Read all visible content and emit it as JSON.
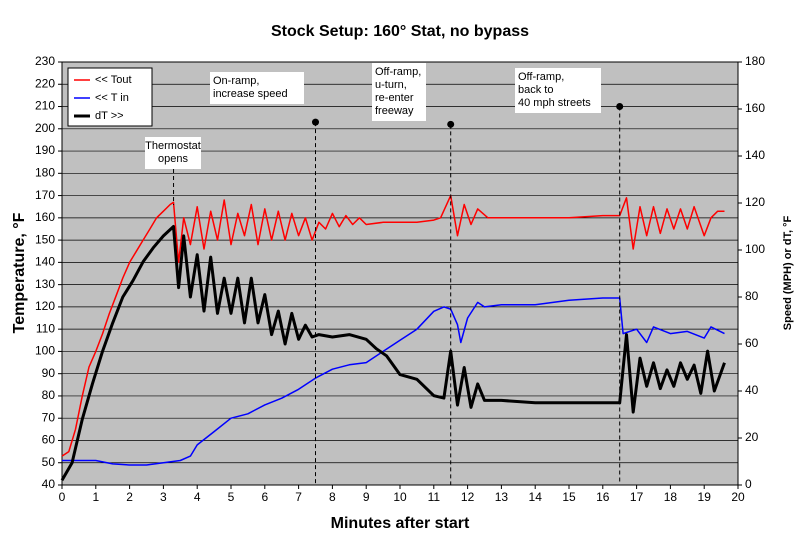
{
  "chart_data": {
    "type": "line",
    "title": "Stock Setup:  160° Stat, no bypass",
    "xlabel": "Minutes after start",
    "ylabel": "Temperature, °F",
    "y2label": "Speed (MPH) or dT, °F",
    "xlim": [
      0,
      20
    ],
    "xticks": [
      0,
      1,
      2,
      3,
      4,
      5,
      6,
      7,
      8,
      9,
      10,
      11,
      12,
      13,
      14,
      15,
      16,
      17,
      18,
      19,
      20
    ],
    "ylim": [
      40,
      230
    ],
    "yticks": [
      40,
      50,
      60,
      70,
      80,
      90,
      100,
      110,
      120,
      130,
      140,
      150,
      160,
      170,
      180,
      190,
      200,
      210,
      220,
      230
    ],
    "y2lim": [
      0,
      180
    ],
    "y2ticks": [
      0,
      20,
      40,
      60,
      80,
      100,
      120,
      140,
      160,
      180
    ],
    "grid": true,
    "legend": "upper left",
    "background": "#c0c0c0",
    "series": [
      {
        "name": "<< Tout",
        "color": "#ff0000",
        "line_width": 1.5,
        "x": [
          0,
          0.2,
          0.4,
          0.6,
          0.8,
          1.0,
          1.2,
          1.4,
          1.6,
          1.8,
          2.0,
          2.2,
          2.4,
          2.6,
          2.8,
          3.0,
          3.2,
          3.3,
          3.45,
          3.6,
          3.8,
          4.0,
          4.2,
          4.4,
          4.6,
          4.8,
          5.0,
          5.2,
          5.4,
          5.6,
          5.8,
          6.0,
          6.2,
          6.4,
          6.6,
          6.8,
          7.0,
          7.2,
          7.4,
          7.6,
          7.8,
          8.0,
          8.2,
          8.4,
          8.6,
          8.8,
          9.0,
          9.5,
          10,
          10.5,
          11,
          11.2,
          11.5,
          11.7,
          11.9,
          12.1,
          12.3,
          12.6,
          13,
          14,
          15,
          16,
          16.5,
          16.7,
          16.9,
          17.1,
          17.3,
          17.5,
          17.7,
          17.9,
          18.1,
          18.3,
          18.5,
          18.7,
          19.0,
          19.2,
          19.4,
          19.6
        ],
        "values": [
          53,
          55,
          65,
          80,
          93,
          100,
          108,
          117,
          125,
          133,
          140,
          145,
          150,
          155,
          160,
          163,
          166,
          167,
          140,
          160,
          148,
          165,
          146,
          163,
          150,
          168,
          148,
          162,
          152,
          166,
          148,
          164,
          150,
          163,
          150,
          162,
          152,
          160,
          150,
          158,
          155,
          162,
          156,
          161,
          157,
          160,
          157,
          158,
          158,
          158,
          159,
          160,
          170,
          152,
          166,
          157,
          164,
          160,
          160,
          160,
          160,
          161,
          161,
          169,
          146,
          165,
          152,
          165,
          153,
          164,
          155,
          164,
          155,
          165,
          152,
          160,
          163,
          163
        ]
      },
      {
        "name": "<< T in",
        "color": "#0000ff",
        "line_width": 1.5,
        "x": [
          0,
          1,
          1.5,
          2,
          2.5,
          3,
          3.5,
          3.8,
          4,
          4.5,
          5,
          5.5,
          6,
          6.5,
          7,
          7.5,
          8,
          8.5,
          9,
          9.5,
          10,
          10.5,
          11,
          11.3,
          11.5,
          11.7,
          11.8,
          12,
          12.3,
          12.5,
          13,
          14,
          15,
          16,
          16.5,
          16.6,
          17,
          17.3,
          17.5,
          18,
          18.5,
          19,
          19.2,
          19.6
        ],
        "values": [
          51,
          51,
          49.5,
          49,
          49,
          50,
          51,
          53,
          58,
          64,
          70,
          72,
          76,
          79,
          83,
          88,
          92,
          94,
          95,
          100,
          105,
          110,
          118,
          120,
          119,
          112,
          104,
          115,
          122,
          120,
          121,
          121,
          123,
          124,
          124,
          108,
          110,
          104,
          111,
          108,
          109,
          106,
          111,
          108
        ]
      },
      {
        "name": "dT >>",
        "color": "#000000",
        "line_width": 3,
        "axis": "y2",
        "x": [
          0,
          0.3,
          0.6,
          0.9,
          1.2,
          1.5,
          1.8,
          2.1,
          2.4,
          2.7,
          3.0,
          3.3,
          3.45,
          3.6,
          3.8,
          4.0,
          4.2,
          4.4,
          4.6,
          4.8,
          5.0,
          5.2,
          5.4,
          5.6,
          5.8,
          6.0,
          6.2,
          6.4,
          6.6,
          6.8,
          7.0,
          7.2,
          7.4,
          7.6,
          8,
          8.5,
          9,
          9.3,
          9.6,
          10,
          10.5,
          11,
          11.3,
          11.5,
          11.7,
          11.9,
          12.1,
          12.3,
          12.5,
          13,
          14,
          15,
          16,
          16.5,
          16.7,
          16.9,
          17.1,
          17.3,
          17.5,
          17.7,
          17.9,
          18.1,
          18.3,
          18.5,
          18.7,
          18.9,
          19.1,
          19.3,
          19.6
        ],
        "values": [
          2,
          9.5,
          28,
          43,
          57,
          69,
          80,
          87,
          95,
          101,
          106,
          110,
          84,
          106,
          80,
          98,
          74,
          97,
          73,
          88,
          73,
          88,
          69,
          88,
          69,
          81,
          64,
          74,
          60,
          73,
          62,
          68,
          63,
          64,
          63,
          64,
          62,
          58,
          55,
          47,
          45,
          38,
          37,
          57,
          34,
          50,
          33,
          43,
          36,
          36,
          35,
          35,
          35,
          35,
          64,
          31,
          54,
          42,
          52,
          41,
          49,
          42,
          52,
          45,
          51,
          39,
          57,
          40,
          52
        ]
      }
    ],
    "annotations": [
      {
        "lines": [
          "Thermostat",
          "opens"
        ],
        "x": 3.3
      },
      {
        "lines": [
          "On-ramp,",
          "increase speed"
        ],
        "x": 7.5,
        "y": 203
      },
      {
        "lines": [
          "Off-ramp,",
          "u-turn,",
          "re-enter",
          "freeway"
        ],
        "x": 11.5,
        "y": 202
      },
      {
        "lines": [
          "Off-ramp,",
          "back to",
          "40 mph streets"
        ],
        "x": 16.5,
        "y": 210
      }
    ]
  }
}
